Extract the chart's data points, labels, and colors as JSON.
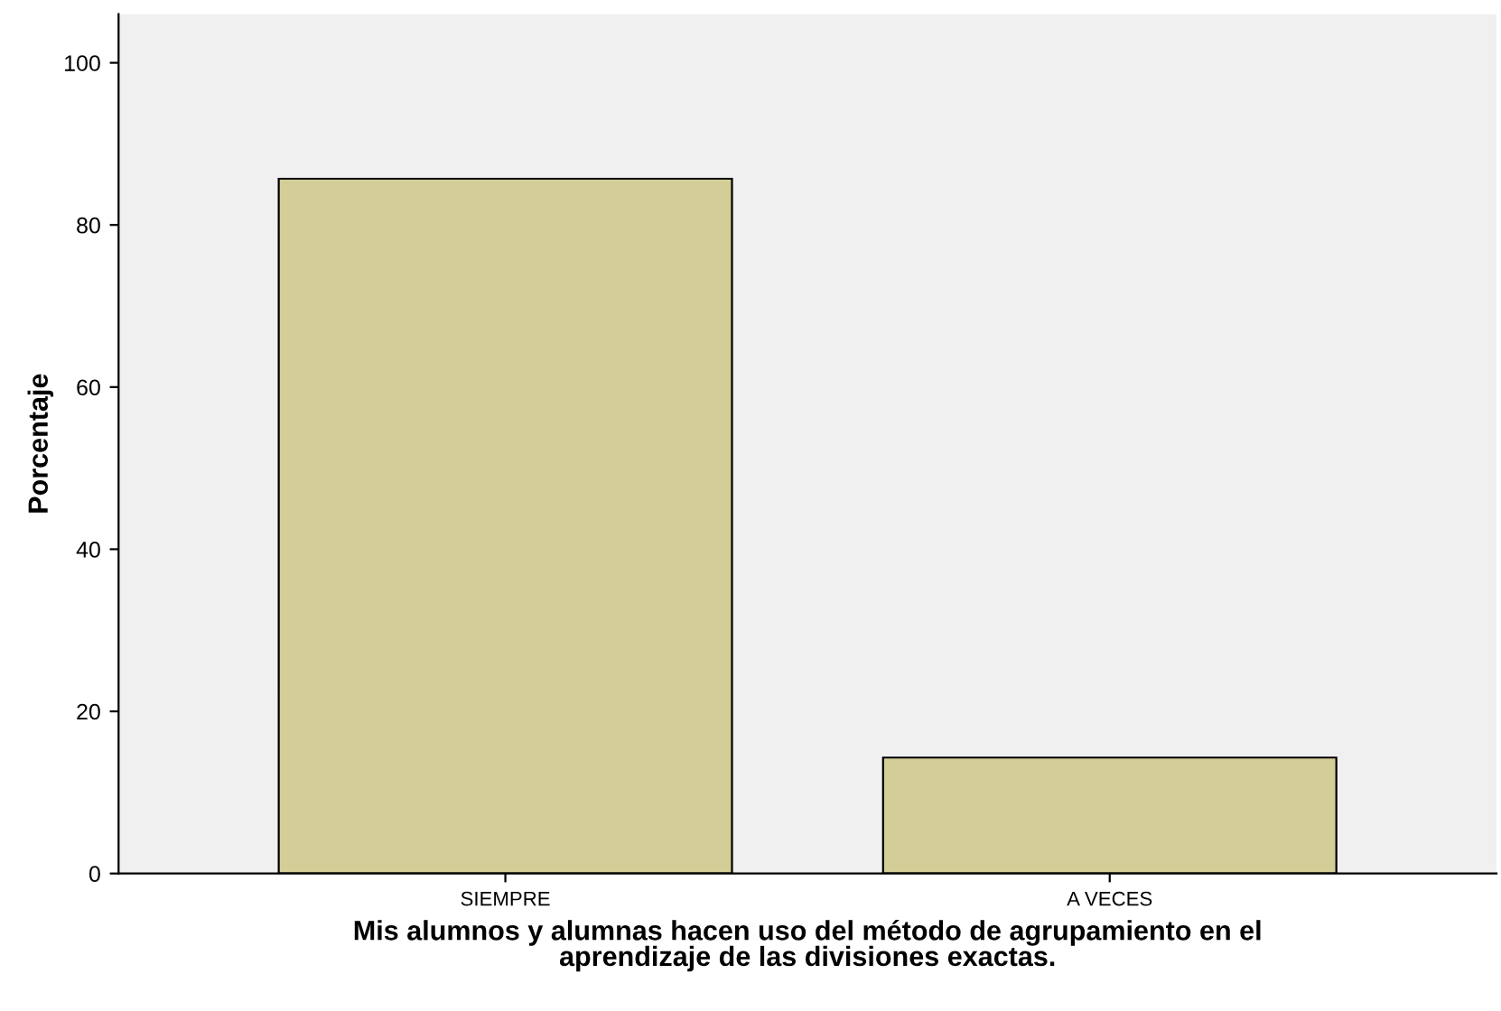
{
  "chart_data": {
    "type": "bar",
    "xlabel": "Mis alumnos y alumnas hacen uso del método de agrupamiento en el\naprendizaje de las divisiones exactas.",
    "ylabel": "Porcentaje",
    "categories": [
      "SIEMPRE",
      "A VECES"
    ],
    "values": [
      85.7,
      14.3
    ],
    "color": "#d3ce97",
    "ylim": [
      0,
      106
    ],
    "yticks": [
      0,
      20,
      40,
      60,
      80,
      100
    ],
    "grid": false,
    "legend": false
  }
}
